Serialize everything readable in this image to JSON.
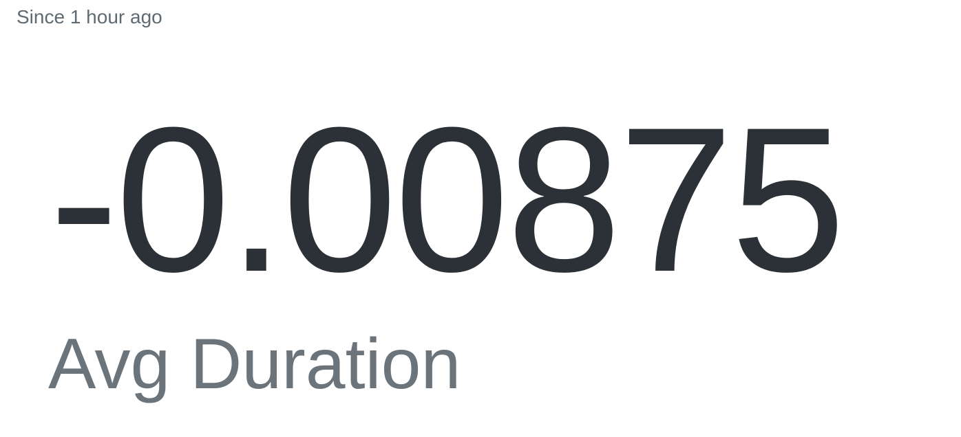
{
  "widget": {
    "time_range": "Since 1 hour ago",
    "value": "-0.00875",
    "label": "Avg Duration"
  },
  "colors": {
    "value": "#2b3136",
    "label": "#6b747b",
    "time_range": "#5f6b73",
    "background": "#ffffff"
  }
}
